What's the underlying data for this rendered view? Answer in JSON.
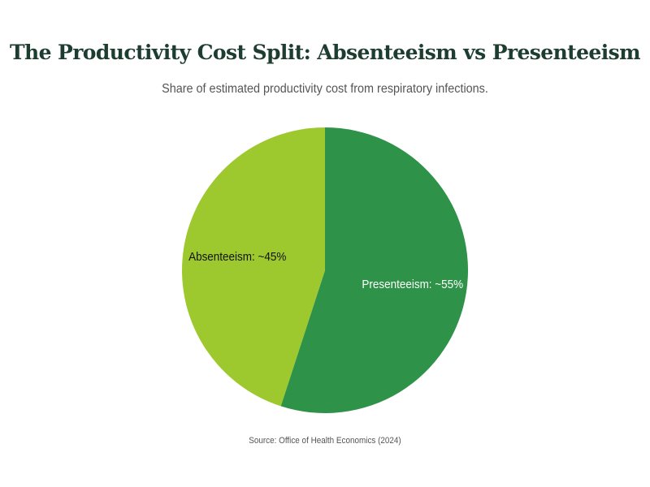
{
  "chart_data": {
    "type": "pie",
    "title": "The Productivity Cost Split: Absenteeism vs Presenteeism",
    "subtitle": "Share of estimated productivity cost from respiratory infections.",
    "source": "Source: Office of Health Economics (2024)",
    "slices": [
      {
        "name": "Presenteeism",
        "value": 55,
        "label": "Presenteeism: ~55%",
        "color": "#2e9249",
        "label_color": "#ffffff"
      },
      {
        "name": "Absenteeism",
        "value": 45,
        "label": "Absenteeism: ~45%",
        "color": "#9dc92e",
        "label_color": "#111111"
      }
    ],
    "start_angle": "top, clockwise"
  }
}
